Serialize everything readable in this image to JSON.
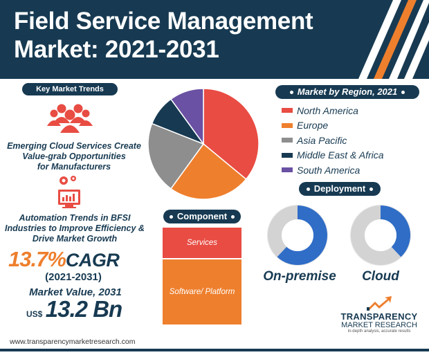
{
  "header": {
    "title_line1": "Field Service Management",
    "title_line2": "Market: 2021-2031"
  },
  "key_trends": {
    "label": "Key Market Trends",
    "trend1": [
      "Emerging Cloud Services Create",
      "Value-grab Opportunities",
      "for Manufacturers"
    ],
    "trend2": [
      "Automation Trends in BFSI",
      "Industries to Improve Efficiency &",
      "Drive Market Growth"
    ]
  },
  "cagr": {
    "value": "13.7%",
    "label": "CAGR",
    "period": "(2021-2031)"
  },
  "market_value": {
    "label": "Market Value, 2031",
    "currency": "US$",
    "amount": "13.2 Bn"
  },
  "region": {
    "label": "Market by Region, 2021",
    "items": [
      {
        "name": "North America",
        "color": "#e84c43",
        "share": 0.36
      },
      {
        "name": "Europe",
        "color": "#ee7f2d",
        "share": 0.24
      },
      {
        "name": "Asia Pacific",
        "color": "#8e8e8e",
        "share": 0.21
      },
      {
        "name": "Middle East & Africa",
        "color": "#173a52",
        "share": 0.09
      },
      {
        "name": "South America",
        "color": "#6a51a3",
        "share": 0.1
      }
    ]
  },
  "component": {
    "label": "Component",
    "services": "Services",
    "software": "Software/ Platform"
  },
  "deployment": {
    "label": "Deployment",
    "on_premise": {
      "label": "On-premise",
      "share": 0.62
    },
    "cloud": {
      "label": "Cloud",
      "share": 0.38
    }
  },
  "logo": {
    "line1": "TRANSPARENCY",
    "line2": "MARKET RESEARCH",
    "tagline": "in-depth analysis, accurate results"
  },
  "footer": {
    "url": "www.transparencymarketresearch.com"
  },
  "colors": {
    "navy": "#173a52",
    "orange": "#ee7f2d",
    "red": "#e84c43",
    "blue": "#2f6dc7"
  }
}
